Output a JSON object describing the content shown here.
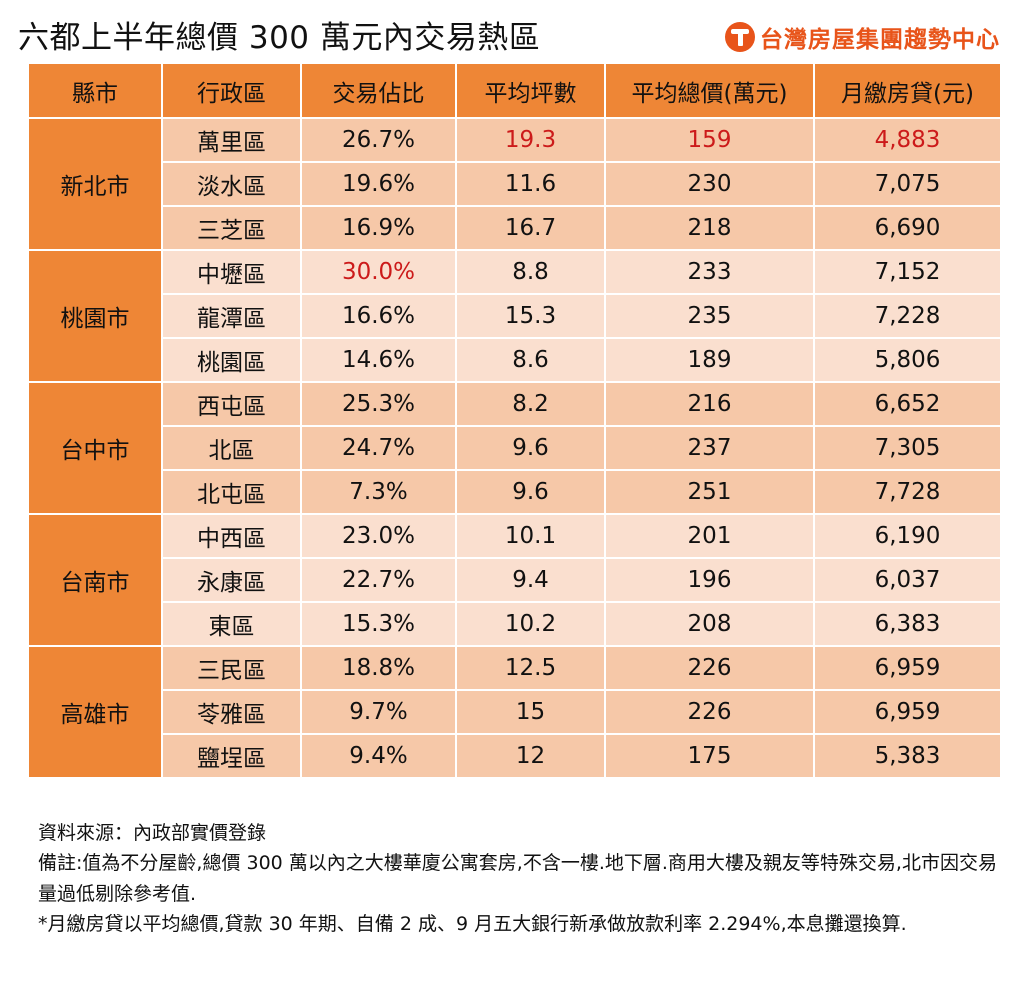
{
  "header": {
    "title": "六都上半年總價 300 萬元內交易熱區",
    "brand_name": "台灣房屋集團趨勢中心"
  },
  "colors": {
    "header_bg": "#ee8636",
    "row_dark": "#f6c8a8",
    "row_light": "#fadfcf",
    "highlight": "#cc1a1a",
    "brand": "#e8541a"
  },
  "table": {
    "columns": [
      "縣市",
      "行政區",
      "交易佔比",
      "平均坪數",
      "平均總價(萬元)",
      "月繳房貸(元)"
    ],
    "groups": [
      {
        "city": "新北市",
        "rows": [
          {
            "district": "萬里區",
            "share": "26.7%",
            "area": "19.3",
            "price": "159",
            "payment": "4,883"
          },
          {
            "district": "淡水區",
            "share": "19.6%",
            "area": "11.6",
            "price": "230",
            "payment": "7,075"
          },
          {
            "district": "三芝區",
            "share": "16.9%",
            "area": "16.7",
            "price": "218",
            "payment": "6,690"
          }
        ]
      },
      {
        "city": "桃園市",
        "rows": [
          {
            "district": "中壢區",
            "share": "30.0%",
            "area": "8.8",
            "price": "233",
            "payment": "7,152"
          },
          {
            "district": "龍潭區",
            "share": "16.6%",
            "area": "15.3",
            "price": "235",
            "payment": "7,228"
          },
          {
            "district": "桃園區",
            "share": "14.6%",
            "area": "8.6",
            "price": "189",
            "payment": "5,806"
          }
        ]
      },
      {
        "city": "台中市",
        "rows": [
          {
            "district": "西屯區",
            "share": "25.3%",
            "area": "8.2",
            "price": "216",
            "payment": "6,652"
          },
          {
            "district": "北區",
            "share": "24.7%",
            "area": "9.6",
            "price": "237",
            "payment": "7,305"
          },
          {
            "district": "北屯區",
            "share": "7.3%",
            "area": "9.6",
            "price": "251",
            "payment": "7,728"
          }
        ]
      },
      {
        "city": "台南市",
        "rows": [
          {
            "district": "中西區",
            "share": "23.0%",
            "area": "10.1",
            "price": "201",
            "payment": "6,190"
          },
          {
            "district": "永康區",
            "share": "22.7%",
            "area": "9.4",
            "price": "196",
            "payment": "6,037"
          },
          {
            "district": "東區",
            "share": "15.3%",
            "area": "10.2",
            "price": "208",
            "payment": "6,383"
          }
        ]
      },
      {
        "city": "高雄市",
        "rows": [
          {
            "district": "三民區",
            "share": "18.8%",
            "area": "12.5",
            "price": "226",
            "payment": "6,959"
          },
          {
            "district": "苓雅區",
            "share": "9.7%",
            "area": "15",
            "price": "226",
            "payment": "6,959"
          },
          {
            "district": "鹽埕區",
            "share": "9.4%",
            "area": "12",
            "price": "175",
            "payment": "5,383"
          }
        ]
      }
    ]
  },
  "notes": {
    "source": "資料來源：內政部實價登錄",
    "remark": "備註:值為不分屋齡,總價 300 萬以內之大樓華廈公寓套房,不含一樓.地下層.商用大樓及親友等特殊交易,北市因交易量過低剔除參考值.",
    "footnote": "*月繳房貸以平均總價,貸款 30 年期、自備 2 成、9 月五大銀行新承做放款利率 2.294%,本息攤還換算."
  }
}
